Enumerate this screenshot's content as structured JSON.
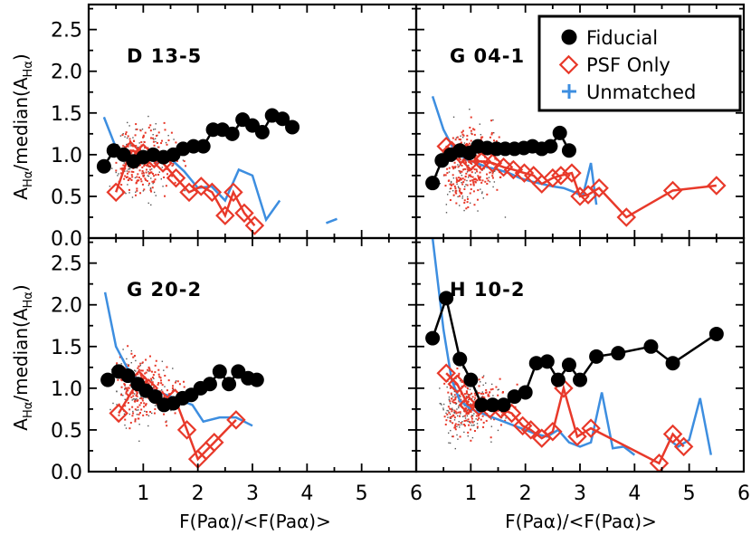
{
  "chart_data": {
    "type": "scatter",
    "figure_layout": "2x2 grid of panels sharing axes",
    "xlabel": "F(Paα)/<F(Paα)>",
    "ylabel": "A_Hα/median(A_Hα)",
    "ylabel_parts": {
      "a": "A",
      "sub1": "Hα",
      "mid": "/median(A",
      "sub2": "Hα",
      "end": ")"
    },
    "xlim": [
      0,
      6
    ],
    "ylim": [
      0,
      2.8
    ],
    "x_ticks": [
      "1",
      "2",
      "3",
      "4",
      "5",
      "6"
    ],
    "y_ticks": [
      "0.0",
      "0.5",
      "1.0",
      "1.5",
      "2.0",
      "2.5"
    ],
    "legend": {
      "placement": "top-right of upper-right panel",
      "entries": [
        {
          "label": "Fiducial",
          "marker": "filled-circle",
          "color": "#000000"
        },
        {
          "label": "PSF Only",
          "marker": "open-diamond",
          "color": "#e8392a"
        },
        {
          "label": "Unmatched",
          "marker": "plus",
          "color": "#3d8ee0"
        }
      ]
    },
    "colors": {
      "fiducial": "#000000",
      "psf": "#e8392a",
      "unmatched": "#3d8ee0",
      "scatter_red": "#e8392a",
      "scatter_black": "#555555"
    },
    "panels": [
      {
        "label": "D 13-5",
        "fiducial": {
          "x": [
            0.28,
            0.46,
            0.64,
            0.82,
            1.0,
            1.18,
            1.37,
            1.55,
            1.73,
            1.92,
            2.1,
            2.28,
            2.45,
            2.63,
            2.82,
            3.0,
            3.18,
            3.36,
            3.55,
            3.73
          ],
          "y": [
            0.86,
            1.05,
            1.0,
            0.92,
            0.97,
            1.0,
            0.97,
            1.0,
            1.07,
            1.1,
            1.1,
            1.3,
            1.3,
            1.25,
            1.42,
            1.35,
            1.27,
            1.47,
            1.43,
            1.33
          ]
        },
        "psf": {
          "x": [
            0.5,
            0.77,
            1.0,
            1.2,
            1.36,
            1.6,
            1.84,
            2.06,
            2.26,
            2.5,
            2.65,
            2.85,
            3.04
          ],
          "y": [
            0.55,
            1.05,
            1.02,
            0.95,
            0.9,
            0.72,
            0.55,
            0.62,
            0.55,
            0.27,
            0.55,
            0.3,
            0.15
          ]
        },
        "unmatched": [
          {
            "x": [
              0.28,
              0.55,
              0.8,
              1.0,
              1.25,
              1.5,
              1.75,
              2.0,
              2.25,
              2.5,
              2.75,
              3.0,
              3.25,
              3.5
            ],
            "y": [
              1.45,
              1.0,
              0.97,
              1.0,
              0.9,
              0.95,
              0.8,
              0.6,
              0.62,
              0.45,
              0.82,
              0.75,
              0.22,
              0.45
            ]
          },
          {
            "x": [
              4.35,
              4.55
            ],
            "y": [
              0.18,
              0.23
            ]
          }
        ],
        "cloud": {
          "center": 0.95,
          "spread": 0.55,
          "n_red": 230,
          "n_black": 120,
          "seed": 3
        }
      },
      {
        "label": "G 04-1",
        "fiducial": {
          "x": [
            0.3,
            0.47,
            0.63,
            0.8,
            0.97,
            1.13,
            1.3,
            1.47,
            1.63,
            1.8,
            1.97,
            2.13,
            2.3,
            2.46,
            2.63,
            2.8
          ],
          "y": [
            0.66,
            0.93,
            1.0,
            1.05,
            1.02,
            1.1,
            1.08,
            1.07,
            1.07,
            1.07,
            1.08,
            1.1,
            1.07,
            1.1,
            1.26,
            1.05
          ]
        },
        "psf": {
          "x": [
            0.55,
            0.65,
            0.82,
            1.0,
            1.2,
            1.4,
            1.6,
            1.78,
            1.98,
            2.15,
            2.3,
            2.5,
            2.65,
            2.85,
            3.0,
            3.15,
            3.35,
            3.85,
            4.7,
            5.5
          ],
          "y": [
            1.1,
            1.05,
            1.0,
            0.92,
            0.92,
            0.9,
            0.85,
            0.82,
            0.78,
            0.75,
            0.65,
            0.72,
            0.75,
            0.78,
            0.5,
            0.52,
            0.6,
            0.25,
            0.57,
            0.63
          ]
        },
        "unmatched": [
          {
            "x": [
              0.3,
              0.5,
              0.7,
              0.9,
              1.1,
              1.3,
              1.5,
              1.7,
              1.9,
              2.1,
              2.3,
              2.5,
              2.7,
              2.9,
              3.05,
              3.2,
              3.3
            ],
            "y": [
              1.7,
              1.3,
              1.05,
              0.95,
              0.9,
              0.85,
              0.82,
              0.78,
              0.72,
              0.68,
              0.65,
              0.62,
              0.6,
              0.55,
              0.5,
              0.9,
              0.4
            ]
          }
        ],
        "cloud": {
          "center": 0.9,
          "spread": 0.6,
          "n_red": 260,
          "n_black": 120,
          "seed": 7
        }
      },
      {
        "label": "G 20-2",
        "fiducial": {
          "x": [
            0.35,
            0.55,
            0.72,
            0.9,
            1.05,
            1.22,
            1.38,
            1.55,
            1.72,
            1.88,
            2.05,
            2.22,
            2.4,
            2.57,
            2.74,
            2.92,
            3.08
          ],
          "y": [
            1.1,
            1.2,
            1.15,
            1.05,
            0.97,
            0.9,
            0.8,
            0.82,
            0.88,
            0.92,
            1.0,
            1.05,
            1.2,
            1.05,
            1.2,
            1.12,
            1.1
          ]
        },
        "psf": {
          "x": [
            0.55,
            0.92,
            1.1,
            1.35,
            1.58,
            1.8,
            2.0,
            2.15,
            2.3,
            2.7
          ],
          "y": [
            0.7,
            1.1,
            1.0,
            0.85,
            0.88,
            0.5,
            0.15,
            0.25,
            0.35,
            0.62
          ]
        },
        "unmatched": [
          {
            "x": [
              0.3,
              0.5,
              0.7,
              0.9,
              1.1,
              1.3,
              1.5,
              1.7,
              1.9,
              2.1,
              2.4,
              2.7,
              3.0
            ],
            "y": [
              2.15,
              1.5,
              1.25,
              1.1,
              1.0,
              0.95,
              0.9,
              0.85,
              0.8,
              0.6,
              0.65,
              0.65,
              0.55
            ]
          }
        ],
        "cloud": {
          "center": 1.0,
          "spread": 0.5,
          "n_red": 200,
          "n_black": 130,
          "seed": 11
        }
      },
      {
        "label": "H 10-2",
        "fiducial": {
          "x": [
            0.3,
            0.55,
            0.8,
            1.0,
            1.2,
            1.4,
            1.6,
            1.8,
            2.0,
            2.2,
            2.4,
            2.6,
            2.8,
            3.0,
            3.3,
            3.7,
            4.3,
            4.7,
            5.5
          ],
          "y": [
            1.6,
            2.08,
            1.35,
            1.1,
            0.8,
            0.8,
            0.8,
            0.9,
            0.95,
            1.3,
            1.32,
            1.1,
            1.28,
            1.1,
            1.38,
            1.42,
            1.5,
            1.3,
            1.65
          ]
        },
        "psf": {
          "x": [
            0.55,
            0.75,
            0.95,
            1.15,
            1.35,
            1.55,
            1.75,
            1.95,
            2.1,
            2.3,
            2.5,
            2.7,
            2.95,
            3.2,
            4.45,
            4.7,
            4.9
          ],
          "y": [
            1.18,
            1.05,
            0.8,
            0.78,
            0.75,
            0.75,
            0.7,
            0.55,
            0.5,
            0.4,
            0.48,
            1.0,
            0.42,
            0.52,
            0.1,
            0.45,
            0.3
          ]
        },
        "unmatched": [
          {
            "x": [
              0.3,
              0.5,
              0.65,
              0.8,
              1.0,
              1.2,
              1.4,
              1.6,
              1.8,
              2.0,
              2.2,
              2.4,
              2.6,
              2.8,
              3.0,
              3.2,
              3.4,
              3.6,
              3.8,
              4.0
            ],
            "y": [
              2.8,
              1.7,
              1.1,
              0.85,
              0.75,
              0.7,
              0.65,
              0.6,
              0.55,
              0.5,
              0.45,
              0.42,
              0.5,
              0.35,
              0.3,
              0.35,
              0.95,
              0.28,
              0.3,
              0.2
            ]
          },
          {
            "x": [
              4.6,
              4.8,
              5.0,
              5.2,
              5.4
            ],
            "y": [
              0.4,
              0.3,
              0.38,
              0.88,
              0.2
            ]
          }
        ],
        "cloud": {
          "center": 0.8,
          "spread": 0.45,
          "n_red": 200,
          "n_black": 150,
          "seed": 19
        }
      }
    ]
  }
}
